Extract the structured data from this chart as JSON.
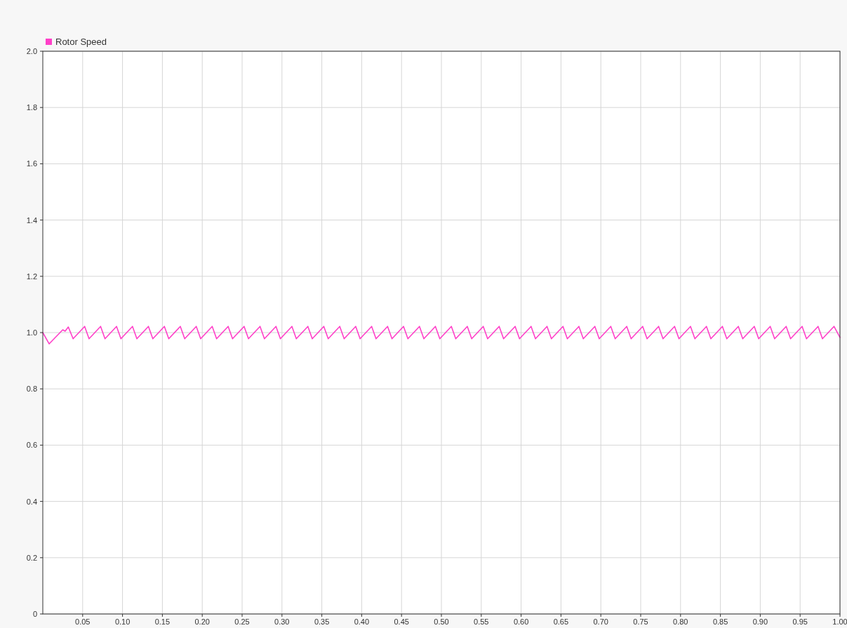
{
  "chart_data": {
    "type": "line",
    "legend": "top left",
    "grid": true,
    "xlim": [
      0,
      1
    ],
    "ylim": [
      0,
      2
    ],
    "xticks": [
      0.05,
      {
        "value": 0.1,
        "label": "0.10"
      },
      0.15,
      {
        "value": 0.2,
        "label": "0.20"
      },
      0.25,
      {
        "value": 0.3,
        "label": "0.30"
      },
      0.35,
      {
        "value": 0.4,
        "label": "0.40"
      },
      0.45,
      {
        "value": 0.5,
        "label": "0.50"
      },
      0.55,
      {
        "value": 0.6,
        "label": "0.60"
      },
      0.65,
      {
        "value": 0.7,
        "label": "0.70"
      },
      0.75,
      {
        "value": 0.8,
        "label": "0.80"
      },
      0.85,
      {
        "value": 0.9,
        "label": "0.90"
      },
      0.95,
      {
        "value": 1,
        "label": "1.00"
      }
    ],
    "yticks": [
      0,
      0.2,
      0.4,
      0.6,
      0.8,
      {
        "value": 1,
        "label": "1.0"
      },
      1.2,
      1.4,
      1.6,
      1.8,
      {
        "value": 2,
        "label": "2.0"
      }
    ],
    "series": [
      {
        "name": "Rotor Speed",
        "color": "#ff40c8",
        "x": [
          0,
          0.008,
          0.025,
          0.028,
          0.032,
          0.038,
          0.0525,
          0.058,
          0.0725,
          0.078,
          0.0925,
          0.098,
          0.1125,
          0.118,
          0.1325,
          0.138,
          0.1525,
          0.158,
          0.1725,
          0.178,
          0.1925,
          0.198,
          0.2125,
          0.218,
          0.2325,
          0.238,
          0.2525,
          0.258,
          0.2725,
          0.278,
          0.2925,
          0.298,
          0.3125,
          0.318,
          0.3325,
          0.338,
          0.3525,
          0.358,
          0.3725,
          0.378,
          0.3925,
          0.398,
          0.4125,
          0.418,
          0.4325,
          0.438,
          0.4525,
          0.458,
          0.4725,
          0.478,
          0.4925,
          0.498,
          0.5125,
          0.518,
          0.5325,
          0.538,
          0.5525,
          0.558,
          0.5725,
          0.578,
          0.5925,
          0.598,
          0.6125,
          0.618,
          0.6325,
          0.638,
          0.6525,
          0.658,
          0.6725,
          0.678,
          0.6925,
          0.698,
          0.7125,
          0.718,
          0.7325,
          0.738,
          0.7525,
          0.758,
          0.7725,
          0.778,
          0.7925,
          0.798,
          0.8125,
          0.818,
          0.8325,
          0.838,
          0.8525,
          0.858,
          0.8725,
          0.878,
          0.8925,
          0.898,
          0.9125,
          0.918,
          0.9325,
          0.938,
          0.9525,
          0.958,
          0.9725,
          0.978,
          0.9925,
          1
        ],
        "values": [
          1,
          0.96,
          1.01,
          1.005,
          1.02,
          0.978,
          1.022,
          0.978,
          1.022,
          0.978,
          1.022,
          0.978,
          1.022,
          0.978,
          1.022,
          0.978,
          1.022,
          0.978,
          1.022,
          0.978,
          1.022,
          0.978,
          1.022,
          0.978,
          1.022,
          0.978,
          1.022,
          0.978,
          1.022,
          0.978,
          1.022,
          0.978,
          1.022,
          0.978,
          1.022,
          0.978,
          1.022,
          0.978,
          1.022,
          0.978,
          1.022,
          0.978,
          1.022,
          0.978,
          1.022,
          0.978,
          1.022,
          0.978,
          1.022,
          0.978,
          1.022,
          0.978,
          1.022,
          0.978,
          1.022,
          0.978,
          1.022,
          0.978,
          1.022,
          0.978,
          1.022,
          0.978,
          1.022,
          0.978,
          1.022,
          0.978,
          1.022,
          0.978,
          1.022,
          0.978,
          1.022,
          0.978,
          1.022,
          0.978,
          1.022,
          0.978,
          1.022,
          0.978,
          1.022,
          0.978,
          1.022,
          0.978,
          1.022,
          0.978,
          1.022,
          0.978,
          1.022,
          0.978,
          1.022,
          0.978,
          1.022,
          0.978,
          1.022,
          0.978,
          1.022,
          0.978,
          1.022,
          0.978,
          1.022,
          0.978,
          1.022,
          0.983
        ]
      }
    ]
  }
}
